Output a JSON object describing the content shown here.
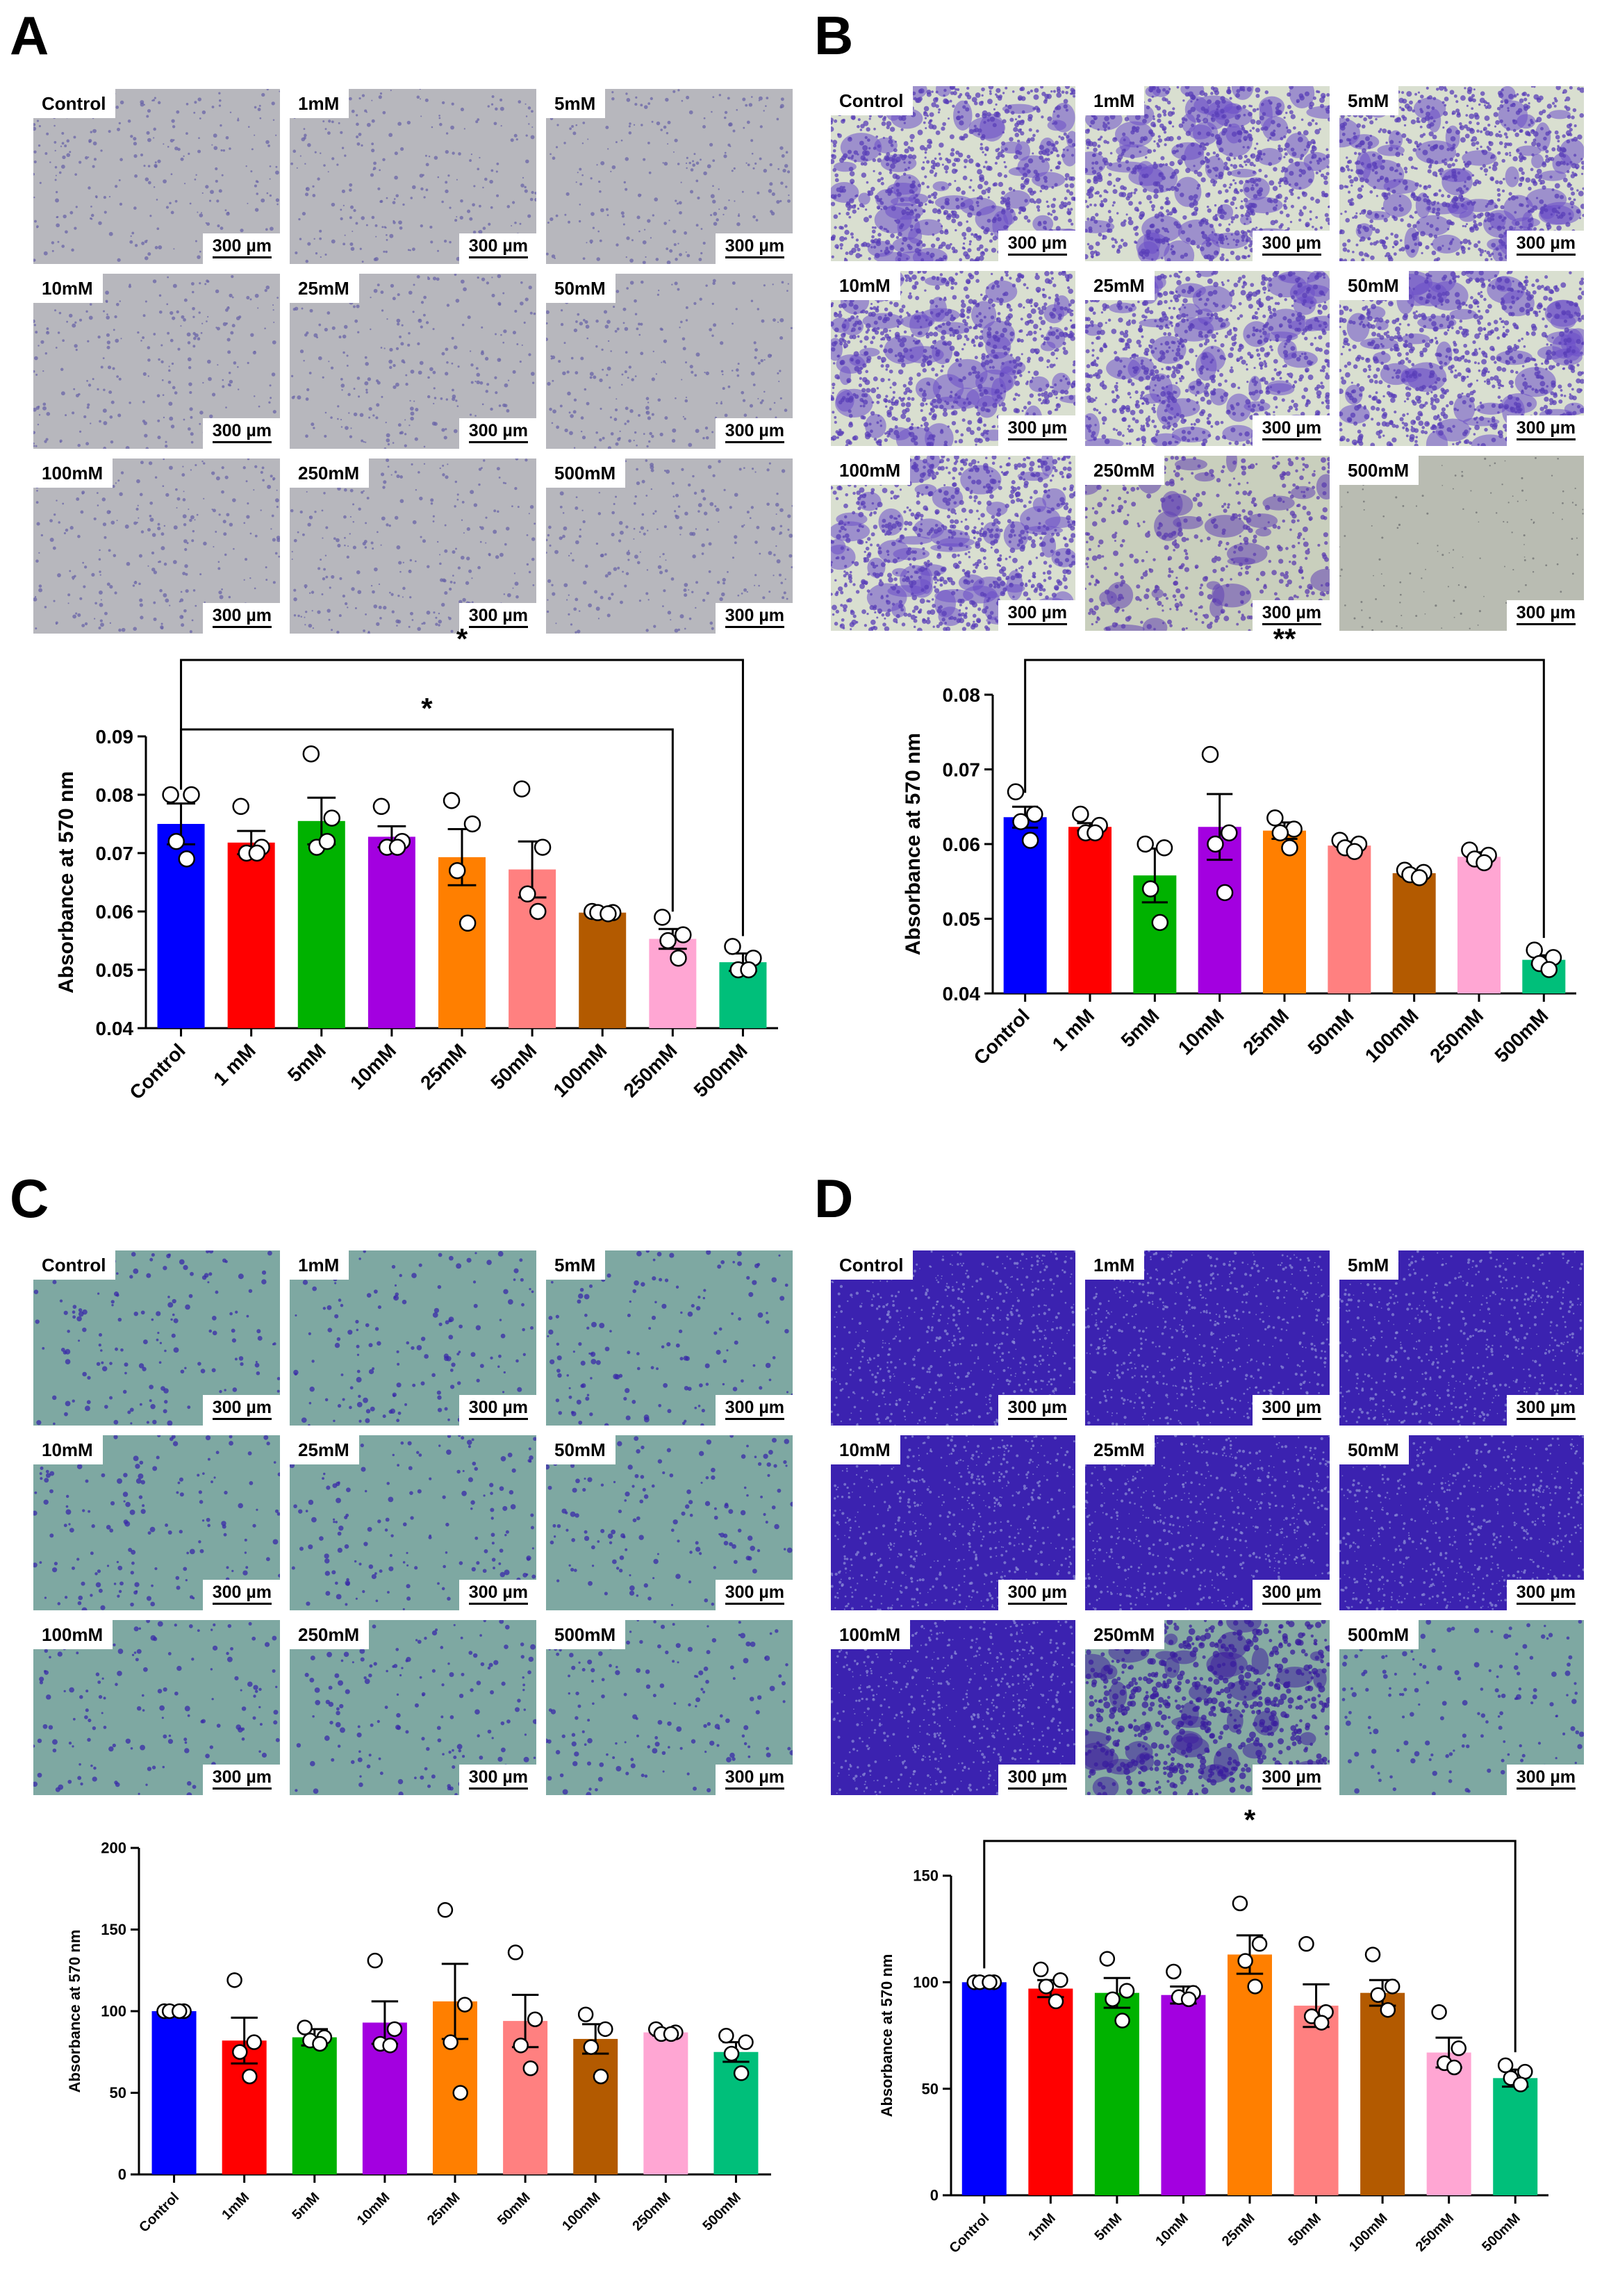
{
  "panels": [
    {
      "letter": "A",
      "scale_text": "300 µm",
      "images": [
        {
          "label": "Control",
          "style": "sparse-gray"
        },
        {
          "label": "1mM",
          "style": "sparse-gray"
        },
        {
          "label": "5mM",
          "style": "sparse-gray"
        },
        {
          "label": "10mM",
          "style": "sparse-gray"
        },
        {
          "label": "25mM",
          "style": "sparse-gray"
        },
        {
          "label": "50mM",
          "style": "sparse-gray"
        },
        {
          "label": "100mM",
          "style": "sparse-gray"
        },
        {
          "label": "250mM",
          "style": "sparse-gray"
        },
        {
          "label": "500mM",
          "style": "sparse-gray"
        }
      ]
    },
    {
      "letter": "B",
      "scale_text": "300 µm",
      "images": [
        {
          "label": "Control",
          "style": "clustered-purple"
        },
        {
          "label": "1mM",
          "style": "clustered-purple"
        },
        {
          "label": "5mM",
          "style": "clustered-purple"
        },
        {
          "label": "10mM",
          "style": "clustered-purple"
        },
        {
          "label": "25mM",
          "style": "clustered-purple"
        },
        {
          "label": "50mM",
          "style": "clustered-purple"
        },
        {
          "label": "100mM",
          "style": "clustered-purple"
        },
        {
          "label": "250mM",
          "style": "patchy-purple"
        },
        {
          "label": "500mM",
          "style": "plain-gray"
        }
      ]
    },
    {
      "letter": "C",
      "scale_text": "300 µm",
      "images": [
        {
          "label": "Control",
          "style": "teal-dots"
        },
        {
          "label": "1mM",
          "style": "teal-dots"
        },
        {
          "label": "5mM",
          "style": "teal-dots"
        },
        {
          "label": "10mM",
          "style": "teal-dots"
        },
        {
          "label": "25mM",
          "style": "teal-dots"
        },
        {
          "label": "50mM",
          "style": "teal-dots"
        },
        {
          "label": "100mM",
          "style": "teal-dots"
        },
        {
          "label": "250mM",
          "style": "teal-dots"
        },
        {
          "label": "500mM",
          "style": "teal-dots"
        }
      ]
    },
    {
      "letter": "D",
      "scale_text": "300 µm",
      "images": [
        {
          "label": "Control",
          "style": "dense-purple"
        },
        {
          "label": "1mM",
          "style": "dense-purple"
        },
        {
          "label": "5mM",
          "style": "dense-purple"
        },
        {
          "label": "10mM",
          "style": "dense-purple"
        },
        {
          "label": "25mM",
          "style": "dense-purple"
        },
        {
          "label": "50mM",
          "style": "dense-purple"
        },
        {
          "label": "100mM",
          "style": "dense-purple"
        },
        {
          "label": "250mM",
          "style": "teal-purple-patches"
        },
        {
          "label": "500mM",
          "style": "teal-dots"
        }
      ]
    }
  ],
  "bar_colors": [
    "#0000ff",
    "#ff0000",
    "#00b200",
    "#a300e0",
    "#ff7f00",
    "#ff8080",
    "#b35a00",
    "#ffa6d3",
    "#00bf7a"
  ],
  "chart_data": [
    {
      "type": "bar",
      "panel": "A",
      "ylabel": "Absorbance at 570 nm",
      "xlabel": "",
      "ylim": [
        0.04,
        0.09
      ],
      "yticks": [
        0.04,
        0.05,
        0.06,
        0.07,
        0.08,
        0.09
      ],
      "ytick_labels": [
        "0.04",
        "0.05",
        "0.06",
        "0.07",
        "0.08",
        "0.09"
      ],
      "categories": [
        "Control",
        "1 mM",
        "5mM",
        "10mM",
        "25mM",
        "50mM",
        "100mM",
        "250mM",
        "500mM"
      ],
      "values": [
        0.075,
        0.0718,
        0.0755,
        0.0728,
        0.0693,
        0.0672,
        0.0598,
        0.0553,
        0.0513
      ],
      "errors": [
        0.0035,
        0.002,
        0.004,
        0.0018,
        0.0048,
        0.0048,
        0.0004,
        0.0017,
        0.0015
      ],
      "points": [
        [
          0.08,
          0.08,
          0.072,
          0.069
        ],
        [
          0.078,
          0.071,
          0.07,
          0.07
        ],
        [
          0.087,
          0.076,
          0.071,
          0.072
        ],
        [
          0.078,
          0.072,
          0.071,
          0.071
        ],
        [
          0.079,
          0.075,
          0.067,
          0.058
        ],
        [
          0.081,
          0.071,
          0.063,
          0.06
        ],
        [
          0.06,
          0.0598,
          0.0598,
          0.0596
        ],
        [
          0.059,
          0.056,
          0.055,
          0.052
        ],
        [
          0.054,
          0.052,
          0.05,
          0.05
        ]
      ],
      "significance": [
        {
          "from": 0,
          "to": 8,
          "label": "*"
        },
        {
          "from": 0,
          "to": 7,
          "label": "*"
        }
      ]
    },
    {
      "type": "bar",
      "panel": "B",
      "ylabel": "Absorbance at 570 nm",
      "xlabel": "",
      "ylim": [
        0.04,
        0.08
      ],
      "yticks": [
        0.04,
        0.05,
        0.06,
        0.07,
        0.08
      ],
      "ytick_labels": [
        "0.04",
        "0.05",
        "0.06",
        "0.07",
        "0.08"
      ],
      "categories": [
        "Control",
        "1 mM",
        "5mM",
        "10mM",
        "25mM",
        "50mM",
        "100mM",
        "250mM",
        "500mM"
      ],
      "values": [
        0.0636,
        0.0623,
        0.0558,
        0.0623,
        0.0618,
        0.0598,
        0.0561,
        0.0583,
        0.0445
      ],
      "errors": [
        0.0014,
        0.0005,
        0.0036,
        0.0044,
        0.0011,
        0.0005,
        0.0004,
        0.0006,
        0.0006
      ],
      "points": [
        [
          0.067,
          0.064,
          0.063,
          0.0605
        ],
        [
          0.064,
          0.0625,
          0.0615,
          0.0615
        ],
        [
          0.06,
          0.0595,
          0.054,
          0.0495
        ],
        [
          0.072,
          0.0615,
          0.06,
          0.0535
        ],
        [
          0.0635,
          0.062,
          0.0615,
          0.0595
        ],
        [
          0.0605,
          0.06,
          0.0595,
          0.059
        ],
        [
          0.0565,
          0.0562,
          0.0559,
          0.0555
        ],
        [
          0.0592,
          0.0585,
          0.058,
          0.0575
        ],
        [
          0.0458,
          0.0448,
          0.044,
          0.0432
        ]
      ],
      "significance": [
        {
          "from": 0,
          "to": 8,
          "label": "**"
        }
      ]
    },
    {
      "type": "bar",
      "panel": "C",
      "ylabel": "Absorbance at 570 nm",
      "xlabel": "",
      "ylim": [
        0,
        200
      ],
      "yticks": [
        0,
        50,
        100,
        150,
        200
      ],
      "ytick_labels": [
        "0",
        "50",
        "100",
        "150",
        "200"
      ],
      "categories": [
        "Control",
        "1mM",
        "5mM",
        "10mM",
        "25mM",
        "50mM",
        "100mM",
        "250mM",
        "500mM"
      ],
      "values": [
        100,
        82,
        84,
        93,
        106,
        94,
        83,
        87,
        75
      ],
      "errors": [
        0,
        14,
        5,
        13,
        23,
        16,
        9,
        2,
        6
      ],
      "points": [
        [
          100,
          100,
          100,
          100
        ],
        [
          119,
          81,
          75,
          60
        ],
        [
          90,
          84,
          82,
          80
        ],
        [
          131,
          89,
          80,
          79
        ],
        [
          162,
          104,
          81,
          50
        ],
        [
          136,
          95,
          79,
          65
        ],
        [
          98,
          89,
          78,
          60
        ],
        [
          89,
          87,
          86,
          86
        ],
        [
          85,
          81,
          74,
          62
        ]
      ],
      "significance": []
    },
    {
      "type": "bar",
      "panel": "D",
      "ylabel": "Absorbance at 570 nm",
      "xlabel": "",
      "ylim": [
        0,
        150
      ],
      "yticks": [
        0,
        50,
        100,
        150
      ],
      "ytick_labels": [
        "0",
        "50",
        "100",
        "150"
      ],
      "categories": [
        "Control",
        "1mM",
        "5mM",
        "10mM",
        "25mM",
        "50mM",
        "100mM",
        "250mM",
        "500mM"
      ],
      "values": [
        100,
        97,
        95,
        94,
        113,
        89,
        95,
        67,
        55
      ],
      "errors": [
        0,
        4,
        7,
        4,
        9,
        10,
        6,
        7,
        4
      ],
      "points": [
        [
          100,
          100,
          100,
          100
        ],
        [
          106,
          101,
          98,
          91
        ],
        [
          111,
          96,
          92,
          82
        ],
        [
          105,
          95,
          93,
          92
        ],
        [
          137,
          118,
          110,
          98
        ],
        [
          118,
          86,
          84,
          81
        ],
        [
          113,
          98,
          94,
          87
        ],
        [
          86,
          69,
          62,
          60
        ],
        [
          61,
          58,
          55,
          52
        ]
      ],
      "significance": [
        {
          "from": 0,
          "to": 8,
          "label": "*"
        }
      ]
    }
  ]
}
